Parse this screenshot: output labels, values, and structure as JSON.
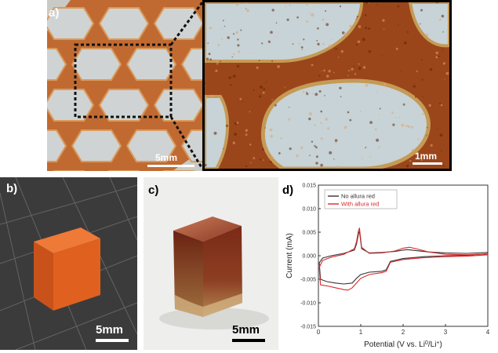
{
  "panel_a": {
    "label": "a)",
    "left_scale": "5mm",
    "right_scale": "1mm"
  },
  "panel_b": {
    "label": "b)",
    "scale": "5mm",
    "cube_color": "#e0611f",
    "background_color": "#3a3a3a"
  },
  "panel_c": {
    "label": "c)",
    "scale": "5mm"
  },
  "panel_d": {
    "label": "d)"
  },
  "chart_data": {
    "type": "line",
    "xlabel_prefix": "Potential (V vs. Li",
    "xlabel_sup1": "0",
    "xlabel_mid": "/Li",
    "xlabel_sup2": "+",
    "xlabel_suffix": ")",
    "ylabel": "Current (mA)",
    "xlim": [
      0,
      4
    ],
    "ylim": [
      -0.015,
      0.015
    ],
    "xticks": [
      "0",
      "1",
      "2",
      "3",
      "4"
    ],
    "yticks": [
      "0.015",
      "0.010",
      "0.005",
      "0.000",
      "-0.005",
      "-0.010",
      "-0.015"
    ],
    "legend_position": "top-left",
    "series": [
      {
        "name": "No allura red",
        "color": "#333333",
        "x": [
          0.02,
          0.1,
          0.3,
          0.6,
          0.85,
          0.9,
          0.95,
          0.97,
          1.02,
          1.2,
          1.5,
          1.8,
          2.0,
          2.1,
          2.3,
          2.6,
          3.0,
          3.5,
          4.0,
          4.0,
          3.5,
          3.0,
          2.5,
          2.0,
          1.7,
          1.6,
          1.5,
          1.2,
          1.0,
          0.9,
          0.8,
          0.6,
          0.4,
          0.2,
          0.05,
          0.02
        ],
        "y": [
          -0.0015,
          -0.0005,
          0.0,
          0.0005,
          0.0012,
          0.0025,
          0.0048,
          0.0052,
          0.0015,
          0.0006,
          0.0007,
          0.0009,
          0.0012,
          0.0013,
          0.0011,
          0.0008,
          0.0006,
          0.0005,
          0.0007,
          0.0004,
          0.0001,
          0.0,
          -0.0002,
          -0.0006,
          -0.0012,
          -0.003,
          -0.0033,
          -0.0035,
          -0.004,
          -0.0048,
          -0.0058,
          -0.006,
          -0.0058,
          -0.0055,
          -0.005,
          -0.0015
        ]
      },
      {
        "name": "With allura red",
        "color": "#d9292b",
        "x": [
          0.02,
          0.1,
          0.3,
          0.6,
          0.85,
          0.9,
          0.95,
          0.97,
          1.02,
          1.2,
          1.5,
          1.8,
          2.0,
          2.15,
          2.3,
          2.6,
          3.0,
          3.5,
          4.0,
          4.0,
          3.5,
          3.0,
          2.5,
          2.0,
          1.7,
          1.6,
          1.5,
          1.2,
          1.0,
          0.9,
          0.8,
          0.7,
          0.6,
          0.4,
          0.2,
          0.05,
          0.02
        ],
        "y": [
          -0.0025,
          -0.001,
          -0.0003,
          0.0003,
          0.0015,
          0.003,
          0.0055,
          0.0058,
          0.0018,
          0.0005,
          0.0006,
          0.001,
          0.0016,
          0.0018,
          0.0015,
          0.0008,
          0.0003,
          0.0002,
          0.0004,
          0.0002,
          -0.0001,
          -0.0002,
          -0.0004,
          -0.0008,
          -0.0014,
          -0.0033,
          -0.0036,
          -0.004,
          -0.0048,
          -0.0058,
          -0.0068,
          -0.0073,
          -0.0072,
          -0.0068,
          -0.0064,
          -0.0062,
          -0.0025
        ]
      }
    ]
  }
}
